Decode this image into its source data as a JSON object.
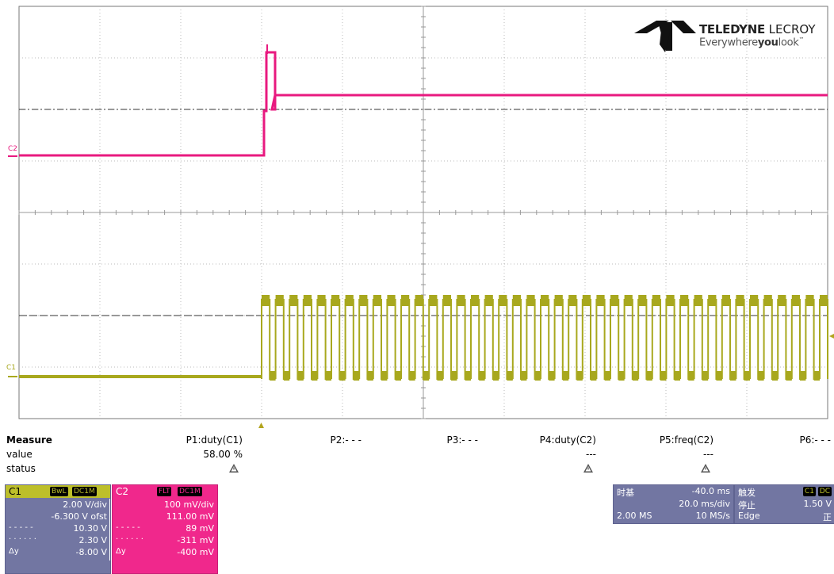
{
  "brand": {
    "name_bold": "TELEDYNE",
    "name_rest": " LECROY",
    "tag_pre": "Everywhere",
    "tag_bold": "you",
    "tag_post": "look",
    "tm": "™"
  },
  "traces": {
    "c2_label": "C2",
    "c1_label": "C1",
    "c2_color": "#e8197f",
    "c1_color": "#a8a81e"
  },
  "measure": {
    "headers": [
      "Measure",
      "P1:duty(C1)",
      "P2:- - -",
      "P3:- - -",
      "P4:duty(C2)",
      "P5:freq(C2)",
      "P6:- - -"
    ],
    "value_label": "value",
    "status_label": "status",
    "values": [
      "58.00 %",
      "",
      "",
      "---",
      "---",
      ""
    ],
    "status": [
      "warning-icon",
      "",
      "",
      "warning-icon",
      "warning-icon",
      ""
    ]
  },
  "c1": {
    "name": "C1",
    "tags": [
      "BwL",
      "DC1M"
    ],
    "rows": [
      {
        "label": "",
        "value": "2.00 V/div"
      },
      {
        "label": "",
        "value": "-6.300 V ofst"
      },
      {
        "label": "- - - - -",
        "value": "10.30 V"
      },
      {
        "label": "· · · · · ·",
        "value": "2.30 V"
      },
      {
        "label": "Δy",
        "value": "-8.00 V"
      }
    ]
  },
  "c2": {
    "name": "C2",
    "tags": [
      "FLT",
      "DC1M"
    ],
    "rows": [
      {
        "label": "",
        "value": "100 mV/div"
      },
      {
        "label": "",
        "value": "111.00 mV"
      },
      {
        "label": "- - - - -",
        "value": "89 mV"
      },
      {
        "label": "· · · · · ·",
        "value": "-311 mV"
      },
      {
        "label": "Δy",
        "value": "-400 mV"
      }
    ]
  },
  "timebase": {
    "title": "时基",
    "delay": "-40.0 ms",
    "per_div": "20.0 ms/div",
    "samples": "2.00 MS",
    "rate": "10 MS/s"
  },
  "trigger": {
    "title": "触发",
    "tags": [
      "C1",
      "DC"
    ],
    "mode": "停止",
    "level": "1.50 V",
    "type": "Edge",
    "slope": "正"
  }
}
